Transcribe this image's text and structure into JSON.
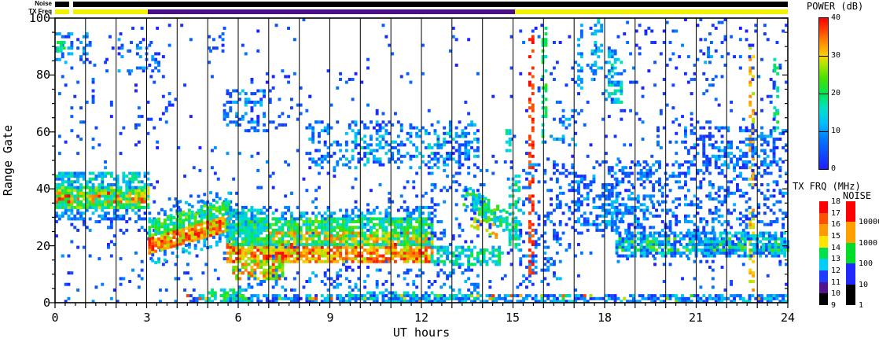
{
  "labels": {
    "noise_strip": "Noise",
    "txfreq_strip": "TX Freq"
  },
  "axes": {
    "x": {
      "title": "UT hours",
      "range": [
        0,
        24
      ],
      "tick_labels": [
        "0",
        "3",
        "6",
        "9",
        "12",
        "15",
        "18",
        "21",
        "24"
      ],
      "minor_tick_hours": 0.3333,
      "hour_gridlines": true
    },
    "y": {
      "title": "Range Gate",
      "range": [
        0,
        100
      ],
      "tick_labels": [
        "100",
        "80",
        "60",
        "40",
        "20",
        "0"
      ],
      "minor_tick_gates": 5
    }
  },
  "colorbars": {
    "power": {
      "title": "POWER (dB)",
      "tick_labels": [
        "40",
        "30",
        "20",
        "10",
        "0"
      ],
      "range": [
        0,
        40
      ],
      "type": "continuous-rainbow",
      "divider_values": [
        30,
        20,
        10
      ]
    },
    "txfrq": {
      "title": "TX FRQ (MHz)",
      "tick_labels": [
        "18",
        "17",
        "16",
        "15",
        "14",
        "13",
        "12",
        "11",
        "10",
        "9"
      ],
      "segment_colors": [
        "#ff0000",
        "#ff5000",
        "#ff9b00",
        "#ffe400",
        "#00e14b",
        "#00cdfa",
        "#1e3cff",
        "#50148c",
        "#000000"
      ]
    },
    "noise": {
      "title": "NOISE",
      "tick_labels": [
        "10000",
        "1000",
        "100",
        "10",
        "1"
      ],
      "segment_colors": [
        "#ff0000",
        "#ffa000",
        "#00dc28",
        "#1e28ff",
        "#000000"
      ]
    }
  },
  "top_strips": {
    "noise_segments": [
      {
        "t": [
          0,
          0.47
        ],
        "c": "#000000"
      },
      {
        "t": [
          0.59,
          24
        ],
        "c": "#000000"
      }
    ],
    "txfreq_segments": [
      {
        "t": [
          0,
          0.47
        ],
        "c": "#f2f200"
      },
      {
        "t": [
          0.59,
          3.04
        ],
        "c": "#f2f200"
      },
      {
        "t": [
          3.04,
          15.06
        ],
        "c": "#4b0e87"
      },
      {
        "t": [
          15.06,
          24
        ],
        "c": "#f2f200"
      }
    ]
  },
  "chart_data": {
    "type": "heatmap",
    "title": "",
    "xlabel": "UT hours",
    "ylabel": "Range Gate",
    "xlim": [
      0,
      24
    ],
    "ylim": [
      0,
      100
    ],
    "value_label": "POWER (dB)",
    "value_range": [
      0,
      40
    ],
    "grid": "vertical lines each hour",
    "legend_position": "right",
    "power_color_stops": [
      [
        0,
        "#1e1eff"
      ],
      [
        8,
        "#0078ff"
      ],
      [
        12,
        "#00beff"
      ],
      [
        16,
        "#00e1c8"
      ],
      [
        20,
        "#00e650"
      ],
      [
        24,
        "#46e100"
      ],
      [
        28,
        "#b4e600"
      ],
      [
        30,
        "#ffd200"
      ],
      [
        34,
        "#ff8200"
      ],
      [
        38,
        "#ff2800"
      ],
      [
        40,
        "#ff0000"
      ]
    ],
    "cell_hours": 0.1,
    "cell_gates": 1,
    "seed": 1234,
    "features": [
      {
        "t": [
          0,
          24
        ],
        "g": [
          4,
          100
        ],
        "d": 0.018,
        "p": [
          0,
          8
        ]
      },
      {
        "t": [
          0,
          24
        ],
        "g": [
          4,
          55
        ],
        "d": 0.025,
        "p": [
          0,
          10
        ]
      },
      {
        "t": [
          0,
          1.15
        ],
        "g": [
          84,
          95
        ],
        "d": 0.32,
        "p": [
          1,
          13
        ]
      },
      {
        "t": [
          0.05,
          0.3
        ],
        "g": [
          88,
          92
        ],
        "d": 0.6,
        "p": [
          14,
          22
        ]
      },
      {
        "t": [
          1.15,
          2.05
        ],
        "g": [
          80,
          95
        ],
        "d": 0.06,
        "p": [
          0,
          8
        ]
      },
      {
        "t": [
          2.05,
          3.55
        ],
        "g": [
          81,
          93
        ],
        "d": 0.25,
        "p": [
          0,
          12
        ]
      },
      {
        "t": [
          0,
          3.6
        ],
        "g": [
          55,
          80
        ],
        "d": 0.05,
        "p": [
          0,
          8
        ]
      },
      {
        "t": [
          3.3,
          4.0
        ],
        "g": [
          62,
          74
        ],
        "d": 0.12,
        "p": [
          0,
          9
        ]
      },
      {
        "t": [
          5.05,
          5.6
        ],
        "g": [
          87,
          96
        ],
        "d": 0.15,
        "p": [
          0,
          9
        ]
      },
      {
        "t": [
          0,
          3.1
        ],
        "g": [
          29,
          34
        ],
        "d": 0.4,
        "p": [
          2,
          14
        ]
      },
      {
        "t": [
          0,
          3.1
        ],
        "g": [
          33,
          41
        ],
        "d": 0.92,
        "p": [
          13,
          30
        ]
      },
      {
        "t": [
          0,
          3.1
        ],
        "g": [
          35,
          39
        ],
        "d": 0.45,
        "p": [
          28,
          40
        ]
      },
      {
        "t": [
          0,
          3.1
        ],
        "g": [
          40,
          46
        ],
        "d": 0.55,
        "p": [
          6,
          20
        ]
      },
      {
        "t": [
          0,
          3.1
        ],
        "g": [
          25,
          30
        ],
        "d": 0.12,
        "p": [
          0,
          10
        ]
      },
      {
        "t": [
          3.05,
          5.65
        ],
        "g": [
          17,
          23
        ],
        "d": 0.88,
        "p": [
          26,
          40
        ],
        "s": 3.1
      },
      {
        "t": [
          3.05,
          5.65
        ],
        "g": [
          23,
          29
        ],
        "d": 0.75,
        "p": [
          12,
          27
        ],
        "s": 3.1
      },
      {
        "t": [
          3.05,
          5.65
        ],
        "g": [
          13,
          17
        ],
        "d": 0.3,
        "p": [
          4,
          16
        ],
        "s": 3.1
      },
      {
        "t": [
          3.05,
          5.65
        ],
        "g": [
          29,
          33
        ],
        "d": 0.25,
        "p": [
          4,
          14
        ],
        "s": 3.1
      },
      {
        "t": [
          5.5,
          6.8
        ],
        "g": [
          60,
          75
        ],
        "d": 0.3,
        "p": [
          1,
          14
        ]
      },
      {
        "t": [
          5.6,
          12.3
        ],
        "g": [
          14,
          21
        ],
        "d": 0.82,
        "p": [
          26,
          40
        ]
      },
      {
        "t": [
          5.8,
          7.4
        ],
        "g": [
          8,
          15
        ],
        "d": 0.65,
        "p": [
          22,
          38
        ]
      },
      {
        "t": [
          5.6,
          12.3
        ],
        "g": [
          20,
          30
        ],
        "d": 0.78,
        "p": [
          12,
          26
        ]
      },
      {
        "t": [
          5.6,
          12.3
        ],
        "g": [
          29,
          34
        ],
        "d": 0.3,
        "p": [
          4,
          16
        ]
      },
      {
        "t": [
          6.0,
          13.8
        ],
        "g": [
          4,
          12
        ],
        "d": 0.18,
        "p": [
          1,
          13
        ]
      },
      {
        "t": [
          5.6,
          6.6
        ],
        "g": [
          22,
          33
        ],
        "d": 0.5,
        "p": [
          8,
          20
        ]
      },
      {
        "t": [
          7.0,
          12.3
        ],
        "g": [
          21,
          25
        ],
        "d": 0.35,
        "p": [
          26,
          36
        ]
      },
      {
        "t": [
          12.3,
          14.6
        ],
        "g": [
          13,
          20
        ],
        "d": 0.55,
        "p": [
          8,
          22
        ]
      },
      {
        "t": [
          13.35,
          15.1
        ],
        "g": [
          34,
          42
        ],
        "d": 0.6,
        "p": [
          10,
          26
        ],
        "s": -6.9
      },
      {
        "t": [
          13.5,
          14.5
        ],
        "g": [
          27,
          32
        ],
        "d": 0.35,
        "p": [
          24,
          34
        ],
        "s": -5
      },
      {
        "t": [
          14.85,
          15.2
        ],
        "g": [
          18,
          45
        ],
        "d": 0.45,
        "p": [
          10,
          22
        ]
      },
      {
        "t": [
          12.2,
          13.9
        ],
        "g": [
          20,
          47
        ],
        "d": 0.13,
        "p": [
          0,
          10
        ]
      },
      {
        "t": [
          8.3,
          13.85
        ],
        "g": [
          47,
          64
        ],
        "d": 0.28,
        "p": [
          0,
          14
        ]
      },
      {
        "t": [
          9.5,
          13.85
        ],
        "g": [
          50,
          60
        ],
        "d": 0.18,
        "p": [
          6,
          18
        ]
      },
      {
        "t": [
          6.2,
          8.3
        ],
        "g": [
          60,
          82
        ],
        "d": 0.07,
        "p": [
          0,
          8
        ]
      },
      {
        "t": [
          15.2,
          16.6
        ],
        "g": [
          5,
          25
        ],
        "d": 0.22,
        "p": [
          0,
          12
        ]
      },
      {
        "t": [
          15.2,
          18.35
        ],
        "g": [
          25,
          50
        ],
        "d": 0.2,
        "p": [
          0,
          12
        ]
      },
      {
        "t": [
          16.2,
          17.1
        ],
        "g": [
          55,
          68
        ],
        "d": 0.25,
        "p": [
          3,
          15
        ]
      },
      {
        "t": [
          16.8,
          18.35
        ],
        "g": [
          24,
          46
        ],
        "d": 0.15,
        "p": [
          2,
          14
        ]
      },
      {
        "t": [
          18.0,
          18.6
        ],
        "g": [
          70,
          89
        ],
        "d": 0.45,
        "p": [
          5,
          19
        ]
      },
      {
        "t": [
          17.9,
          18.5
        ],
        "g": [
          26,
          42
        ],
        "d": 0.4,
        "p": [
          3,
          16
        ]
      },
      {
        "t": [
          15.2,
          18.3
        ],
        "g": [
          55,
          100
        ],
        "d": 0.02,
        "p": [
          0,
          8
        ]
      },
      {
        "t": [
          15.5,
          15.62
        ],
        "g": [
          10,
          98
        ],
        "d": 0.38,
        "p": [
          35,
          40
        ]
      },
      {
        "t": [
          15.93,
          16.05
        ],
        "g": [
          55,
          97
        ],
        "d": 0.35,
        "p": [
          15,
          23
        ]
      },
      {
        "t": [
          17.1,
          17.22
        ],
        "g": [
          75,
          100
        ],
        "d": 0.4,
        "p": [
          5,
          14
        ]
      },
      {
        "t": [
          17.55,
          17.67
        ],
        "g": [
          78,
          98
        ],
        "d": 0.45,
        "p": [
          6,
          16
        ]
      },
      {
        "t": [
          17.75,
          17.87
        ],
        "g": [
          82,
          100
        ],
        "d": 0.4,
        "p": [
          8,
          16
        ]
      },
      {
        "t": [
          22.72,
          22.85
        ],
        "g": [
          3,
          92
        ],
        "d": 0.38,
        "p": [
          27,
          34
        ]
      },
      {
        "t": [
          23.52,
          23.65
        ],
        "g": [
          60,
          87
        ],
        "d": 0.45,
        "p": [
          14,
          22
        ]
      },
      {
        "t": [
          14.75,
          14.9
        ],
        "g": [
          53,
          62
        ],
        "d": 0.5,
        "p": [
          12,
          20
        ]
      },
      {
        "t": [
          18.35,
          24
        ],
        "g": [
          16,
          25
        ],
        "d": 0.7,
        "p": [
          2,
          17
        ]
      },
      {
        "t": [
          18.35,
          24
        ],
        "g": [
          18,
          23
        ],
        "d": 0.25,
        "p": [
          14,
          26
        ]
      },
      {
        "t": [
          20.0,
          24
        ],
        "g": [
          25,
          50
        ],
        "d": 0.25,
        "p": [
          0,
          12
        ]
      },
      {
        "t": [
          18.35,
          20.0
        ],
        "g": [
          25,
          50
        ],
        "d": 0.28,
        "p": [
          0,
          12
        ]
      },
      {
        "t": [
          18.35,
          19.3
        ],
        "g": [
          28,
          38
        ],
        "d": 0.4,
        "p": [
          2,
          14
        ]
      },
      {
        "t": [
          18.6,
          20.6
        ],
        "g": [
          55,
          97
        ],
        "d": 0.08,
        "p": [
          0,
          9
        ]
      },
      {
        "t": [
          20.6,
          24
        ],
        "g": [
          48,
          62
        ],
        "d": 0.38,
        "p": [
          0,
          13
        ]
      },
      {
        "t": [
          20.6,
          24
        ],
        "g": [
          62,
          100
        ],
        "d": 0.05,
        "p": [
          0,
          8
        ]
      },
      {
        "t": [
          21.25,
          21.55
        ],
        "g": [
          84,
          93
        ],
        "d": 0.4,
        "p": [
          4,
          12
        ]
      },
      {
        "t": [
          4.3,
          24
        ],
        "g": [
          0,
          3
        ],
        "d": 0.62,
        "p": [
          0,
          16
        ]
      },
      {
        "t": [
          4.3,
          24
        ],
        "g": [
          0,
          3
        ],
        "d": 0.07,
        "p": [
          22,
          38
        ]
      },
      {
        "t": [
          5.0,
          6.35
        ],
        "g": [
          0,
          5
        ],
        "d": 0.55,
        "p": [
          12,
          26
        ]
      },
      {
        "t": [
          9.5,
          13.85
        ],
        "g": [
          0,
          4
        ],
        "d": 0.4,
        "p": [
          4,
          20
        ]
      },
      {
        "t": [
          0,
          4.3
        ],
        "g": [
          0,
          3
        ],
        "d": 0.06,
        "p": [
          0,
          10
        ]
      },
      {
        "t": [
          16.5,
          24
        ],
        "g": [
          0,
          3
        ],
        "d": 0.15,
        "p": [
          4,
          18
        ]
      }
    ]
  }
}
